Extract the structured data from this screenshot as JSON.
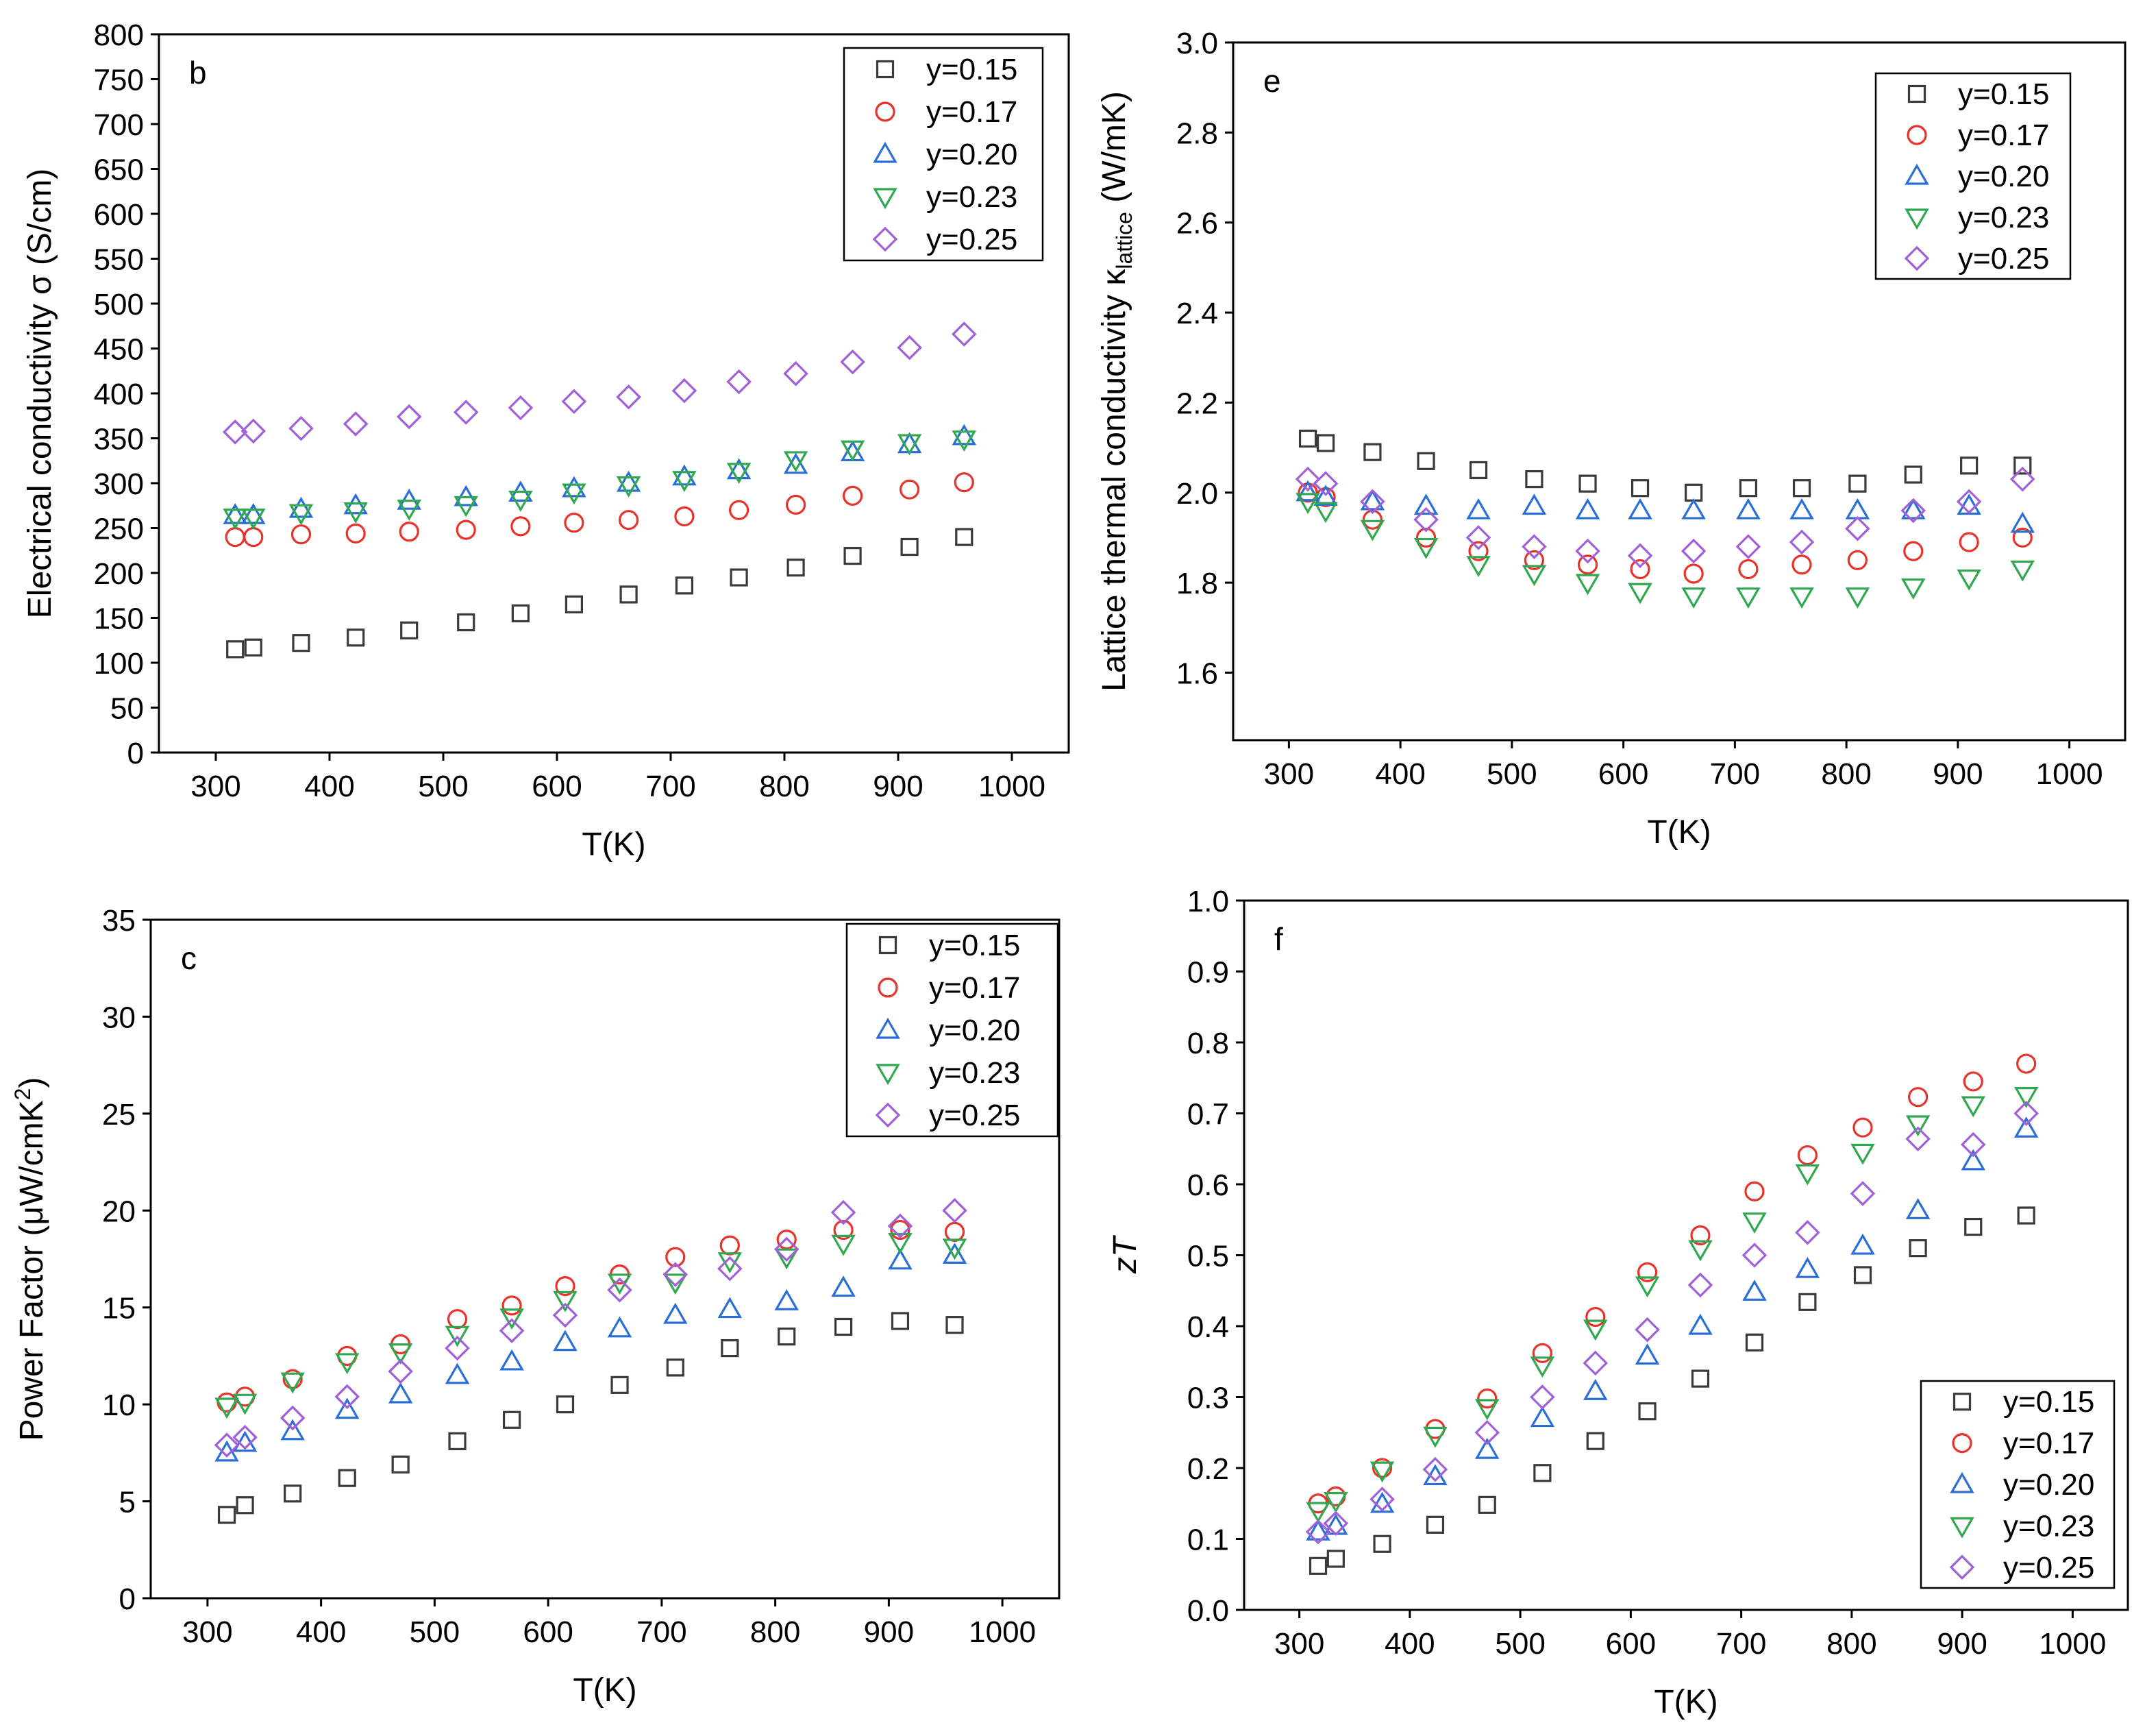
{
  "series_styles": [
    {
      "name": "y=0.15",
      "marker": "square",
      "color": "#3a3a3a"
    },
    {
      "name": "y=0.17",
      "marker": "circle",
      "color": "#e8322a"
    },
    {
      "name": "y=0.20",
      "marker": "triangle-up",
      "color": "#2a6fd6"
    },
    {
      "name": "y=0.23",
      "marker": "triangle-down",
      "color": "#2fa84f"
    },
    {
      "name": "y=0.25",
      "marker": "diamond",
      "color": "#a15fd8"
    }
  ],
  "chart_data": [
    {
      "id": "b",
      "type": "scatter",
      "panel_label": "b",
      "xlabel": "T(K)",
      "ylabel": "Electrical conductivity σ (S/cm)",
      "xlim": [
        250,
        1050
      ],
      "ylim": [
        0,
        800
      ],
      "xticks": [
        300,
        400,
        500,
        600,
        700,
        800,
        900,
        1000
      ],
      "yticks": [
        0,
        50,
        100,
        150,
        200,
        250,
        300,
        350,
        400,
        450,
        500,
        550,
        600,
        650,
        700,
        750,
        800
      ],
      "ytick_decimals": 0,
      "legend_position": "top-right",
      "x": [
        317,
        333,
        375,
        423,
        470,
        520,
        568,
        615,
        663,
        712,
        760,
        810,
        860,
        910,
        958
      ],
      "series": [
        {
          "name": "y=0.15",
          "values": [
            115,
            117,
            122,
            128,
            136,
            145,
            155,
            165,
            176,
            186,
            195,
            206,
            219,
            229,
            240
          ]
        },
        {
          "name": "y=0.17",
          "values": [
            240,
            240,
            243,
            244,
            246,
            248,
            252,
            256,
            259,
            263,
            270,
            276,
            286,
            293,
            301
          ]
        },
        {
          "name": "y=0.20",
          "values": [
            264,
            264,
            271,
            275,
            280,
            284,
            289,
            294,
            300,
            307,
            314,
            320,
            334,
            343,
            352
          ]
        },
        {
          "name": "y=0.23",
          "values": [
            262,
            262,
            267,
            269,
            272,
            276,
            282,
            290,
            298,
            304,
            313,
            326,
            338,
            345,
            349
          ]
        },
        {
          "name": "y=0.25",
          "values": [
            357,
            358,
            361,
            366,
            374,
            379,
            384,
            391,
            396,
            403,
            413,
            422,
            435,
            451,
            466
          ]
        }
      ]
    },
    {
      "id": "e",
      "type": "scatter",
      "panel_label": "e",
      "xlabel": "T(K)",
      "ylabel_main": "Lattice thermal conductivity κ",
      "ylabel_sub": "lattice",
      "ylabel_unit": " (W/mK)",
      "xlim": [
        250,
        1050
      ],
      "ylim": [
        1.45,
        3.0
      ],
      "xticks": [
        300,
        400,
        500,
        600,
        700,
        800,
        900,
        1000
      ],
      "yticks": [
        1.6,
        1.8,
        2.0,
        2.2,
        2.4,
        2.6,
        2.8,
        3.0
      ],
      "ytick_decimals": 1,
      "legend_position": "top-right",
      "x": [
        317,
        333,
        375,
        423,
        470,
        520,
        568,
        615,
        663,
        712,
        760,
        810,
        860,
        910,
        958
      ],
      "series": [
        {
          "name": "y=0.15",
          "values": [
            2.12,
            2.11,
            2.09,
            2.07,
            2.05,
            2.03,
            2.02,
            2.01,
            2.0,
            2.01,
            2.01,
            2.02,
            2.04,
            2.06,
            2.06
          ]
        },
        {
          "name": "y=0.17",
          "values": [
            2.0,
            1.99,
            1.94,
            1.9,
            1.87,
            1.85,
            1.84,
            1.83,
            1.82,
            1.83,
            1.84,
            1.85,
            1.87,
            1.89,
            1.9
          ]
        },
        {
          "name": "y=0.20",
          "values": [
            2.0,
            1.99,
            1.98,
            1.97,
            1.96,
            1.97,
            1.96,
            1.96,
            1.96,
            1.96,
            1.96,
            1.96,
            1.96,
            1.97,
            1.93
          ]
        },
        {
          "name": "y=0.23",
          "values": [
            1.98,
            1.96,
            1.92,
            1.88,
            1.84,
            1.82,
            1.8,
            1.78,
            1.77,
            1.77,
            1.77,
            1.77,
            1.79,
            1.81,
            1.83
          ]
        },
        {
          "name": "y=0.25",
          "values": [
            2.03,
            2.02,
            1.98,
            1.94,
            1.9,
            1.88,
            1.87,
            1.86,
            1.87,
            1.88,
            1.89,
            1.92,
            1.96,
            1.98,
            2.03
          ]
        }
      ]
    },
    {
      "id": "c",
      "type": "scatter",
      "panel_label": "c",
      "xlabel": "T(K)",
      "ylabel_main": "Power Factor (μW/cmK",
      "ylabel_sup": "2",
      "ylabel_end": ")",
      "xlim": [
        250,
        1050
      ],
      "ylim": [
        0,
        35
      ],
      "xticks": [
        300,
        400,
        500,
        600,
        700,
        800,
        900,
        1000
      ],
      "yticks": [
        0,
        5,
        10,
        15,
        20,
        25,
        30,
        35
      ],
      "ytick_decimals": 0,
      "legend_position": "top-right",
      "x": [
        317,
        333,
        375,
        423,
        470,
        520,
        568,
        615,
        663,
        712,
        760,
        810,
        860,
        910,
        958
      ],
      "series": [
        {
          "name": "y=0.15",
          "values": [
            4.3,
            4.8,
            5.4,
            6.2,
            6.9,
            8.1,
            9.2,
            10.0,
            11.0,
            11.9,
            12.9,
            13.5,
            14.0,
            14.3,
            14.1
          ]
        },
        {
          "name": "y=0.17",
          "values": [
            10.1,
            10.4,
            11.3,
            12.5,
            13.1,
            14.4,
            15.1,
            16.1,
            16.7,
            17.6,
            18.2,
            18.5,
            19.0,
            19.0,
            18.9
          ]
        },
        {
          "name": "y=0.20",
          "values": [
            7.5,
            8.0,
            8.6,
            9.7,
            10.5,
            11.5,
            12.2,
            13.2,
            13.9,
            14.6,
            14.9,
            15.3,
            16.0,
            17.4,
            17.7
          ]
        },
        {
          "name": "y=0.23",
          "values": [
            9.9,
            10.1,
            11.2,
            12.2,
            12.7,
            13.6,
            14.5,
            15.4,
            16.3,
            16.3,
            17.4,
            17.6,
            18.3,
            18.4,
            18.1
          ]
        },
        {
          "name": "y=0.25",
          "values": [
            7.9,
            8.3,
            9.3,
            10.4,
            11.7,
            12.9,
            13.8,
            14.6,
            15.9,
            16.7,
            17.0,
            18.0,
            19.9,
            19.2,
            20.0
          ]
        }
      ]
    },
    {
      "id": "f",
      "type": "scatter",
      "panel_label": "f",
      "xlabel": "T(K)",
      "ylabel_italic": "zT",
      "xlim": [
        250,
        1050
      ],
      "ylim": [
        0,
        1.0
      ],
      "xticks": [
        300,
        400,
        500,
        600,
        700,
        800,
        900,
        1000
      ],
      "yticks": [
        0.0,
        0.1,
        0.2,
        0.3,
        0.4,
        0.5,
        0.6,
        0.7,
        0.8,
        0.9,
        1.0
      ],
      "ytick_decimals": 1,
      "legend_position": "bottom-right",
      "x": [
        317,
        333,
        375,
        423,
        470,
        520,
        568,
        615,
        663,
        712,
        760,
        810,
        860,
        910,
        958
      ],
      "series": [
        {
          "name": "y=0.15",
          "values": [
            0.062,
            0.072,
            0.093,
            0.12,
            0.148,
            0.193,
            0.238,
            0.28,
            0.326,
            0.377,
            0.434,
            0.472,
            0.51,
            0.54,
            0.556
          ]
        },
        {
          "name": "y=0.17",
          "values": [
            0.15,
            0.16,
            0.2,
            0.255,
            0.298,
            0.362,
            0.413,
            0.476,
            0.528,
            0.59,
            0.641,
            0.68,
            0.723,
            0.745,
            0.77
          ]
        },
        {
          "name": "y=0.20",
          "values": [
            0.11,
            0.118,
            0.149,
            0.188,
            0.225,
            0.27,
            0.308,
            0.358,
            0.4,
            0.448,
            0.48,
            0.513,
            0.563,
            0.632,
            0.678
          ]
        },
        {
          "name": "y=0.23",
          "values": [
            0.14,
            0.154,
            0.197,
            0.246,
            0.285,
            0.345,
            0.397,
            0.458,
            0.509,
            0.548,
            0.616,
            0.645,
            0.685,
            0.712,
            0.725
          ]
        },
        {
          "name": "y=0.25",
          "values": [
            0.11,
            0.122,
            0.156,
            0.198,
            0.25,
            0.3,
            0.348,
            0.395,
            0.458,
            0.5,
            0.532,
            0.587,
            0.664,
            0.656,
            0.7
          ]
        }
      ]
    }
  ]
}
